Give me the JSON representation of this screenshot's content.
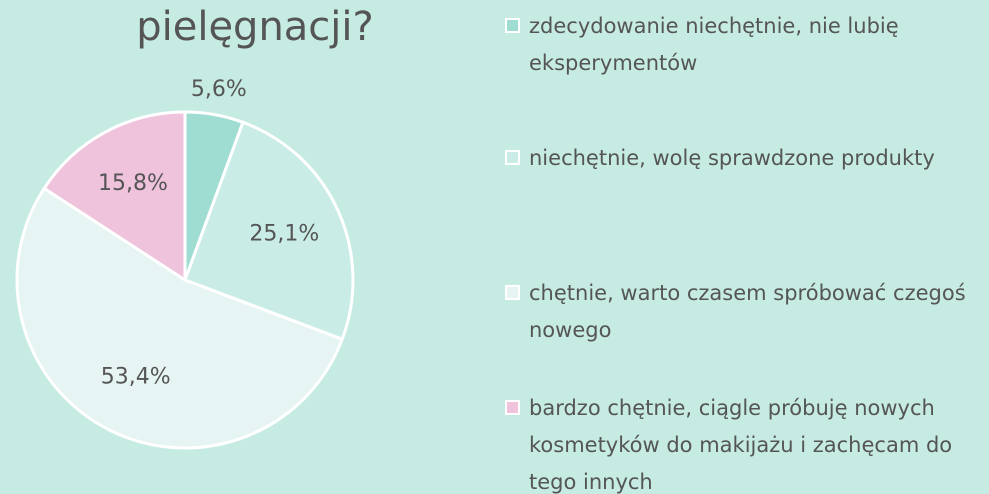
{
  "chart_data": {
    "type": "pie",
    "title": "pielęgnacji?",
    "categories": [
      "zdecydowanie niechętnie, nie lubię eksperymentów",
      "niechętnie, wolę sprawdzone produkty",
      "chętnie, warto czasem spróbować czegoś nowego",
      "bardzo chętnie, ciągle próbuję nowych kosmetyków do makijażu i zachęcam do tego innych"
    ],
    "values": [
      5.6,
      25.1,
      53.4,
      15.8
    ],
    "value_labels": [
      "5,6%",
      "25,1%",
      "53,4%",
      "15,8%"
    ],
    "colors": [
      "#9fdcd2",
      "#c9ede6",
      "#e6f5f3",
      "#efc3dc"
    ],
    "legend": "right"
  }
}
